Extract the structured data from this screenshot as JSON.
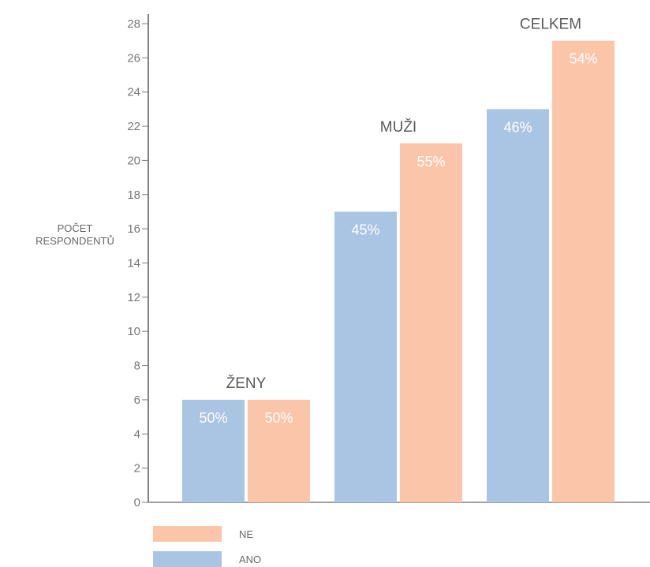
{
  "chart_data": {
    "type": "bar",
    "categories": [
      "ŽENY",
      "MUŽI",
      "CELKEM"
    ],
    "series": [
      {
        "name": "ANO",
        "values": [
          6,
          17,
          23
        ],
        "labels": [
          "50%",
          "45%",
          "46%"
        ],
        "color": "#aac4e3"
      },
      {
        "name": "NE",
        "values": [
          6,
          21,
          27
        ],
        "labels": [
          "50%",
          "55%",
          "54%"
        ],
        "color": "#fbc5aa"
      }
    ],
    "ylabel_lines": [
      "POČET",
      "RESPONDENTŮ"
    ],
    "ylim": [
      0,
      28
    ],
    "yticks": [
      0,
      2,
      4,
      6,
      8,
      10,
      12,
      14,
      16,
      18,
      20,
      22,
      24,
      26,
      28
    ],
    "grid": false,
    "legend": {
      "placement": "bottom-left",
      "entries": [
        {
          "label": "NE",
          "color": "#fbc5aa"
        },
        {
          "label": "ANO",
          "color": "#aac4e3"
        }
      ]
    },
    "axis_color": "#808080"
  }
}
